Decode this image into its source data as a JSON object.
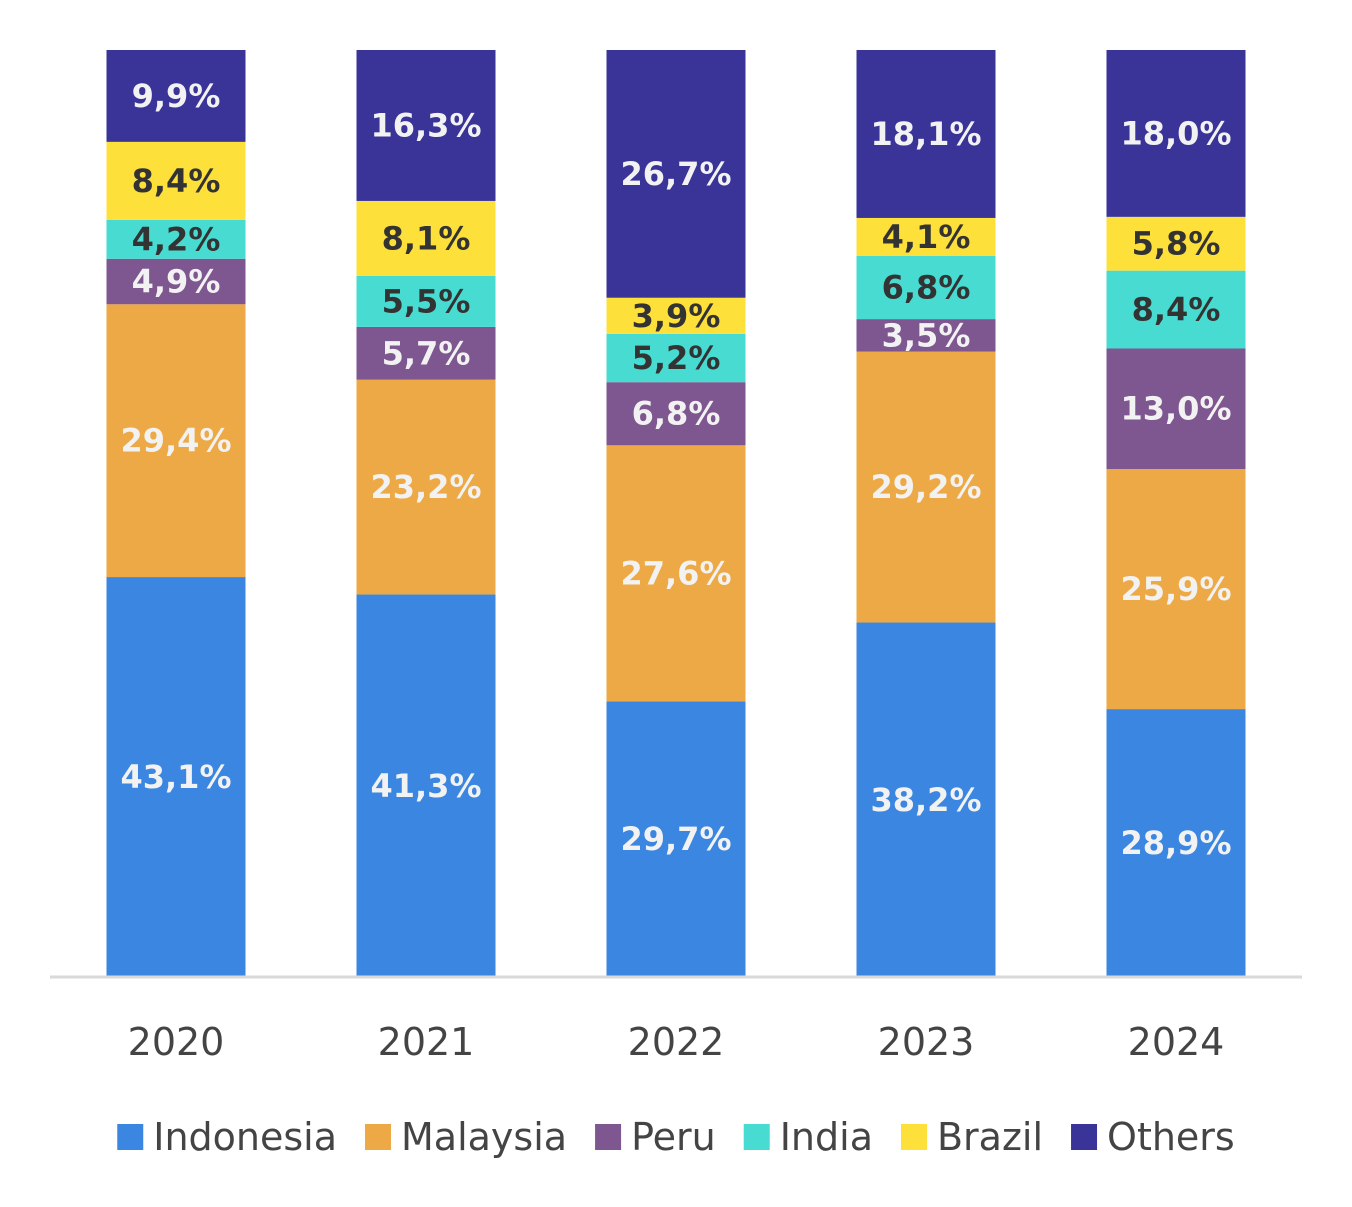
{
  "chart_data": {
    "type": "bar",
    "stacked": true,
    "normalized": true,
    "categories": [
      "2020",
      "2021",
      "2022",
      "2023",
      "2024"
    ],
    "series": [
      {
        "name": "Indonesia",
        "color": "#3A86E0",
        "label_color": "#F2F2F2",
        "values": [
          43.1,
          41.3,
          29.7,
          38.2,
          28.9
        ],
        "labels": [
          "43,1%",
          "41,3%",
          "29,7%",
          "38,2%",
          "28,9%"
        ]
      },
      {
        "name": "Malaysia",
        "color": "#EDA945",
        "label_color": "#F2F2F2",
        "values": [
          29.4,
          23.2,
          27.6,
          29.2,
          25.9
        ],
        "labels": [
          "29,4%",
          "23,2%",
          "27,6%",
          "29,2%",
          "25,9%"
        ]
      },
      {
        "name": "Peru",
        "color": "#7E5690",
        "label_color": "#F2F2F2",
        "values": [
          4.9,
          5.7,
          6.8,
          3.5,
          13.0
        ],
        "labels": [
          "4,9%",
          "5,7%",
          "6,8%",
          "3,5%",
          "13,0%"
        ]
      },
      {
        "name": "India",
        "color": "#47DBD2",
        "label_color": "#333333",
        "values": [
          4.2,
          5.5,
          5.2,
          6.8,
          8.4
        ],
        "labels": [
          "4,2%",
          "5,5%",
          "5,2%",
          "6,8%",
          "8,4%"
        ]
      },
      {
        "name": "Brazil",
        "color": "#FDE03A",
        "label_color": "#333333",
        "values": [
          8.4,
          8.1,
          3.9,
          4.1,
          5.8
        ],
        "labels": [
          "8,4%",
          "8,1%",
          "3,9%",
          "4,1%",
          "5,8%"
        ]
      },
      {
        "name": "Others",
        "color": "#3A3498",
        "label_color": "#F2F2F2",
        "values": [
          9.9,
          16.3,
          26.7,
          18.1,
          18.0
        ],
        "labels": [
          "9,9%",
          "16,3%",
          "26,7%",
          "18,1%",
          "18,0%"
        ]
      }
    ],
    "legend_position": "bottom",
    "grid": false,
    "axis_line_color": "#D9D9D9"
  }
}
